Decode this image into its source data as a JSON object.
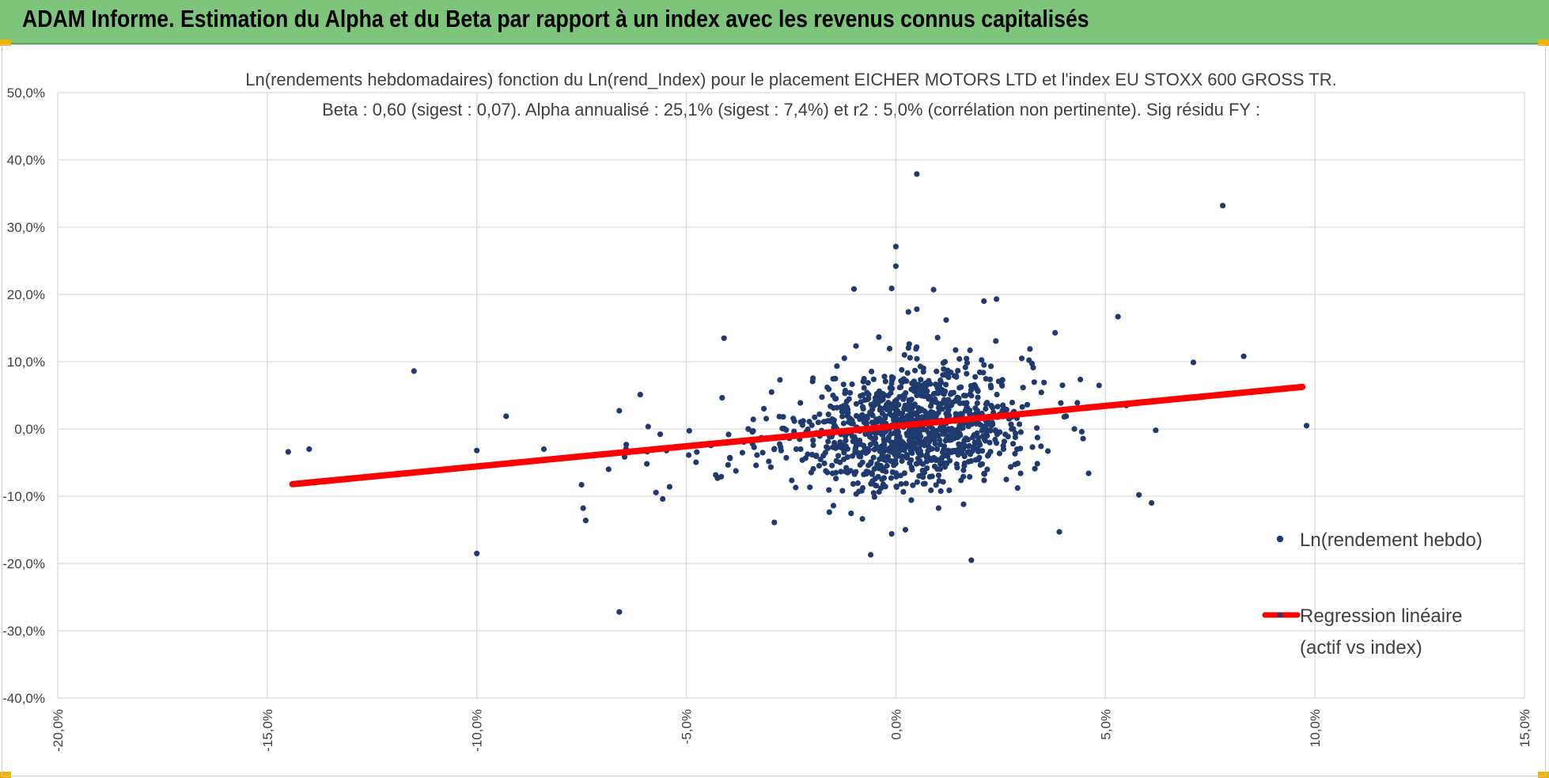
{
  "header": {
    "title": "ADAM Informe. Estimation du Alpha et du Beta par rapport à un index avec les revenus connus capitalisés"
  },
  "colors": {
    "banner": "#7dc57a",
    "points": "#1f3a6e",
    "regression": "#ff0000",
    "grid": "#d9d9d9",
    "text": "#404040"
  },
  "chart_data": {
    "type": "scatter",
    "title": "Ln(rendements hebdomadaires) fonction du Ln(rend_Index) pour le placement EICHER MOTORS LTD et l'index EU STOXX 600 GROSS TR.",
    "subtitle": "Beta : 0,60 (sigest : 0,07).  Alpha annualisé : 25,1% (sigest : 7,4%) et r2 : 5,0% (corrélation non pertinente). Sig résidu FY :",
    "xlim": [
      -20,
      15
    ],
    "ylim": [
      -40,
      50
    ],
    "x_ticks": [
      "-20,0%",
      "-15,0%",
      "-10,0%",
      "-5,0%",
      "0,0%",
      "5,0%",
      "10,0%",
      "15,0%"
    ],
    "y_ticks": [
      "50,0%",
      "40,0%",
      "30,0%",
      "20,0%",
      "10,0%",
      "0,0%",
      "-10,0%",
      "-20,0%",
      "-30,0%",
      "-40,0%"
    ],
    "grid": true,
    "legend_position": "right",
    "regression": {
      "beta": 0.6,
      "alpha_weekly": 0.43,
      "x_range": [
        -14.4,
        9.7
      ]
    },
    "series": [
      {
        "name": "Ln(rendement hebdo)",
        "points": [
          [
            0.5,
            37.9
          ],
          [
            7.8,
            33.2
          ],
          [
            0.0,
            27.1
          ],
          [
            0.0,
            24.2
          ],
          [
            0.9,
            20.7
          ],
          [
            -1.0,
            20.8
          ],
          [
            -0.1,
            20.9
          ],
          [
            2.4,
            19.3
          ],
          [
            2.1,
            19.0
          ],
          [
            5.3,
            16.7
          ],
          [
            0.5,
            17.8
          ],
          [
            0.3,
            17.4
          ],
          [
            1.2,
            16.2
          ],
          [
            -4.1,
            13.5
          ],
          [
            3.8,
            14.3
          ],
          [
            8.3,
            10.8
          ],
          [
            7.1,
            9.9
          ],
          [
            -11.5,
            8.6
          ],
          [
            -14.5,
            -3.4
          ],
          [
            -14.0,
            -3.0
          ],
          [
            -9.3,
            1.9
          ],
          [
            -10.0,
            -3.2
          ],
          [
            -8.4,
            -3.0
          ],
          [
            -7.5,
            -8.3
          ],
          [
            -7.4,
            -13.6
          ],
          [
            -6.6,
            2.7
          ],
          [
            -6.1,
            5.1
          ],
          [
            -5.4,
            -8.6
          ],
          [
            -10.0,
            -18.5
          ],
          [
            -6.6,
            -27.2
          ],
          [
            9.8,
            0.5
          ],
          [
            6.2,
            -0.2
          ],
          [
            5.8,
            -9.8
          ],
          [
            6.1,
            -11.0
          ],
          [
            3.9,
            -15.3
          ],
          [
            1.8,
            -19.5
          ],
          [
            -0.6,
            -18.7
          ],
          [
            4.6,
            -6.6
          ],
          [
            5.5,
            3.5
          ],
          [
            -0.1,
            -15.6
          ],
          [
            -2.9,
            -13.9
          ],
          [
            3.2,
            11.9
          ]
        ]
      },
      {
        "name": "Regression linéaire\n(actif vs index)"
      }
    ],
    "legend": [
      {
        "label": "Ln(rendement hebdo)",
        "marker": "dot"
      },
      {
        "label_line1": "Regression linéaire",
        "label_line2": "(actif vs index)",
        "marker": "line"
      }
    ]
  }
}
